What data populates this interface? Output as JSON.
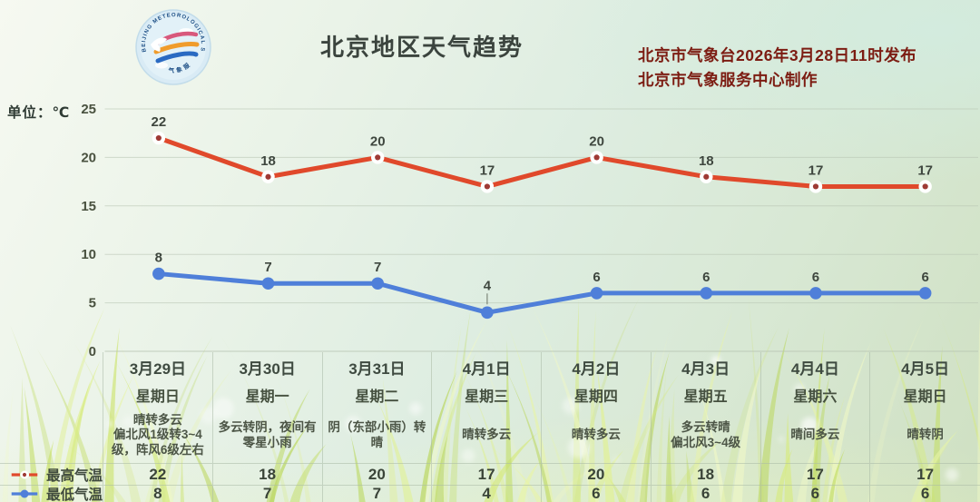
{
  "header": {
    "title": "北京地区天气趋势",
    "publisher_line1": "北京市气象台2026年3月28日11时发布",
    "publisher_line2": "北京市气象服务中心制作",
    "publisher_color": "#7c1c12",
    "logo_name": "beijing-meteorological-service-logo"
  },
  "unit_label": "单位：℃",
  "chart_data": {
    "type": "line",
    "title": "北京地区天气趋势",
    "categories": [
      "3月29日",
      "3月30日",
      "3月31日",
      "4月1日",
      "4月2日",
      "4月3日",
      "4月4日",
      "4月5日"
    ],
    "series": [
      {
        "name": "最高气温",
        "values": [
          22,
          18,
          20,
          17,
          20,
          18,
          17,
          17
        ],
        "color": "#e0492b",
        "marker_ring": "#ffffff",
        "marker_center": "#9e3a35"
      },
      {
        "name": "最低气温",
        "values": [
          8,
          7,
          7,
          4,
          6,
          6,
          6,
          6
        ],
        "color": "#4f7fd9",
        "marker_fill": "#4f7fd9"
      }
    ],
    "ylabel": "单位：℃",
    "ylim": [
      0,
      25
    ],
    "yticks": [
      25,
      20,
      15,
      10,
      5,
      0
    ],
    "grid": true,
    "legend_position": "bottom-left"
  },
  "legend": {
    "max_label": "最高气温",
    "min_label": "最低气温"
  },
  "table": {
    "columns": [
      {
        "date": "3月29日",
        "weekday": "星期日",
        "weather": "晴转多云\n偏北风1级转3~4级，阵风6级左右",
        "max": "22",
        "min": "8"
      },
      {
        "date": "3月30日",
        "weekday": "星期一",
        "weather": "多云转阴，夜间有零星小雨",
        "max": "18",
        "min": "7"
      },
      {
        "date": "3月31日",
        "weekday": "星期二",
        "weather": "阴（东部小雨）转晴",
        "max": "20",
        "min": "7"
      },
      {
        "date": "4月1日",
        "weekday": "星期三",
        "weather": "晴转多云",
        "max": "17",
        "min": "4"
      },
      {
        "date": "4月2日",
        "weekday": "星期四",
        "weather": "晴转多云",
        "max": "20",
        "min": "6"
      },
      {
        "date": "4月3日",
        "weekday": "星期五",
        "weather": "多云转晴\n偏北风3~4级",
        "max": "18",
        "min": "6"
      },
      {
        "date": "4月4日",
        "weekday": "星期六",
        "weather": "晴间多云",
        "max": "17",
        "min": "6"
      },
      {
        "date": "4月5日",
        "weekday": "星期日",
        "weather": "晴转阴",
        "max": "17",
        "min": "6"
      }
    ]
  }
}
